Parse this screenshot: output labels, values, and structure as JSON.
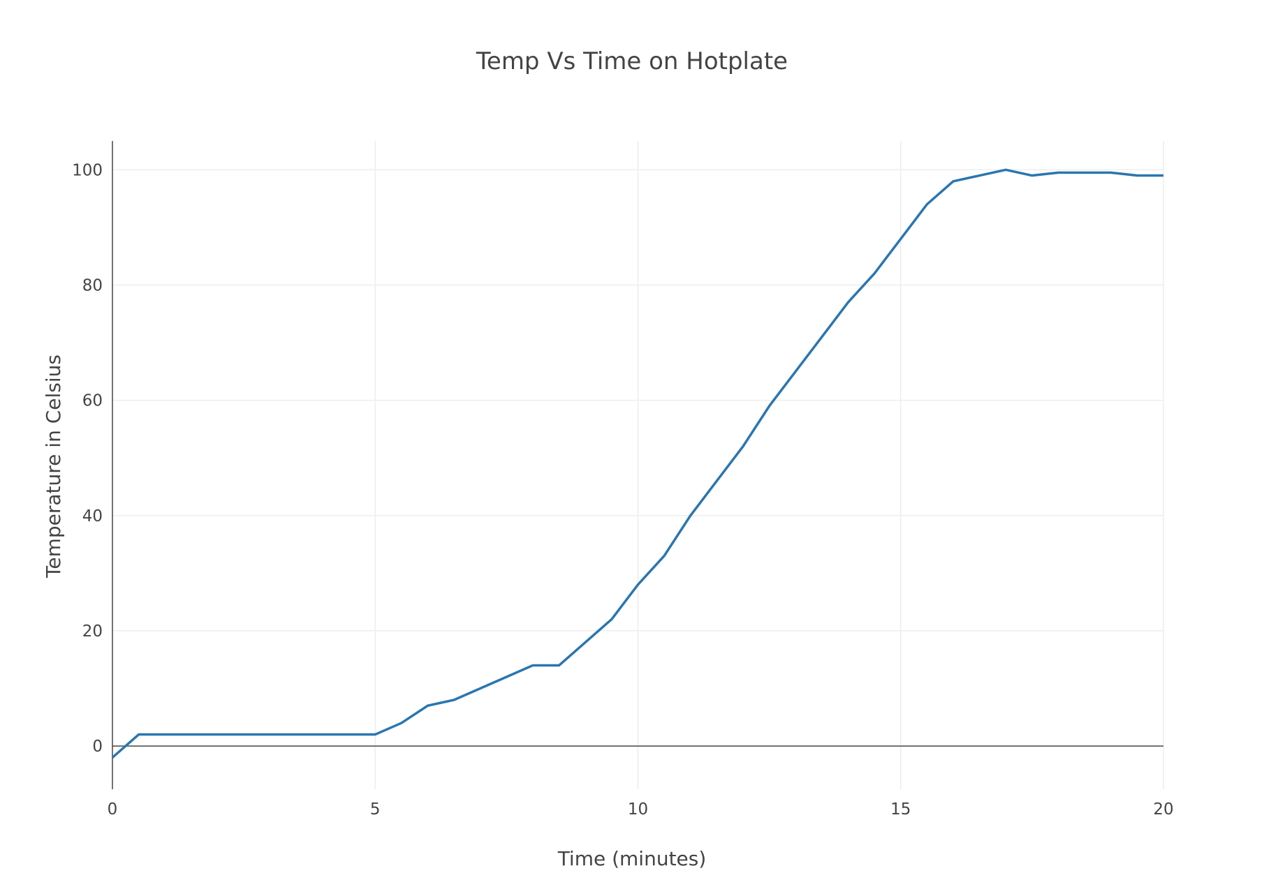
{
  "chart_data": {
    "type": "line",
    "title": "Temp Vs Time on Hotplate",
    "xlabel": "Time (minutes)",
    "ylabel": "Temperature in Celsius",
    "xlim": [
      0,
      20
    ],
    "ylim": [
      -7.5,
      105
    ],
    "x_ticks": [
      0,
      5,
      10,
      15,
      20
    ],
    "y_ticks": [
      0,
      20,
      40,
      60,
      80,
      100
    ],
    "grid": true,
    "legend": "none",
    "series": [
      {
        "color": "#2a76b0",
        "x": [
          0,
          0.5,
          1,
          1.5,
          2,
          2.5,
          3,
          3.5,
          4,
          4.5,
          5,
          5.5,
          6,
          6.5,
          7,
          7.5,
          8,
          8.5,
          9,
          9.5,
          10,
          10.5,
          11,
          11.5,
          12,
          12.5,
          13,
          13.5,
          14,
          14.5,
          15,
          15.5,
          16,
          16.5,
          17,
          17.5,
          18,
          18.5,
          19,
          19.5,
          20
        ],
        "y": [
          -2,
          2,
          2,
          2,
          2,
          2,
          2,
          2,
          2,
          2,
          2,
          4,
          7,
          8,
          10,
          12,
          14,
          14,
          18,
          22,
          28,
          33,
          40,
          46,
          52,
          59,
          65,
          71,
          77,
          82,
          88,
          94,
          98,
          99,
          100,
          99,
          99.5,
          99.5,
          99.5,
          99,
          99
        ]
      }
    ]
  }
}
